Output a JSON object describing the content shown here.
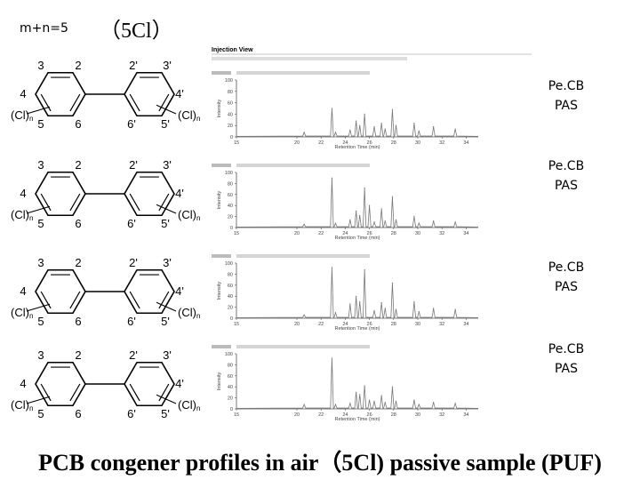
{
  "slide": {
    "tag": "m+n=5",
    "heading": "（5Cl）",
    "caption": "PCB congener profiles in air（5Cl) passive sample (PUF)"
  },
  "molecule": {
    "pos": [
      "3",
      "2",
      "2'",
      "3'",
      "4",
      "4'",
      "5",
      "6",
      "6'",
      "5'"
    ],
    "cl_left": "(Cl)",
    "cl_right": "(Cl)",
    "sub": "n"
  },
  "panel_header": "Injection View",
  "panels": [
    {
      "label_1": "Pe.CB",
      "label_2": "PAS"
    },
    {
      "label_1": "Pe.CB",
      "label_2": "PAS"
    },
    {
      "label_1": "Pe.CB",
      "label_2": "PAS"
    },
    {
      "label_1": "Pe.CB",
      "label_2": "PAS"
    }
  ],
  "chart_data": [
    {
      "type": "line",
      "xlabel": "Retention Time (min)",
      "ylabel": "Intensity",
      "xlim": [
        15,
        35
      ],
      "ylim": [
        0,
        100
      ],
      "x_ticks": [
        "15",
        "20",
        "22",
        "24",
        "26",
        "28",
        "30",
        "32",
        "34"
      ],
      "y_ticks": [
        "0",
        "20",
        "40",
        "60",
        "80",
        "100"
      ],
      "series": [
        {
          "peaks": [
            [
              20.6,
              8
            ],
            [
              22.9,
              50
            ],
            [
              23.2,
              8
            ],
            [
              24.4,
              12
            ],
            [
              24.9,
              28
            ],
            [
              25.2,
              20
            ],
            [
              25.6,
              40
            ],
            [
              26.4,
              18
            ],
            [
              27.0,
              24
            ],
            [
              27.3,
              14
            ],
            [
              27.9,
              48
            ],
            [
              28.2,
              20
            ],
            [
              29.7,
              24
            ],
            [
              30.1,
              10
            ],
            [
              31.3,
              18
            ],
            [
              33.1,
              14
            ]
          ]
        }
      ]
    },
    {
      "type": "line",
      "xlabel": "Retention Time (min)",
      "ylabel": "Intensity",
      "xlim": [
        15,
        35
      ],
      "ylim": [
        0,
        100
      ],
      "x_ticks": [
        "15",
        "20",
        "22",
        "24",
        "26",
        "28",
        "30",
        "32",
        "34"
      ],
      "y_ticks": [
        "0",
        "20",
        "40",
        "60",
        "80",
        "100"
      ],
      "series": [
        {
          "peaks": [
            [
              20.6,
              6
            ],
            [
              22.9,
              90
            ],
            [
              23.2,
              8
            ],
            [
              24.4,
              14
            ],
            [
              24.9,
              30
            ],
            [
              25.2,
              22
            ],
            [
              25.6,
              72
            ],
            [
              26.0,
              40
            ],
            [
              26.4,
              10
            ],
            [
              27.0,
              34
            ],
            [
              27.3,
              12
            ],
            [
              27.9,
              56
            ],
            [
              28.2,
              14
            ],
            [
              29.7,
              20
            ],
            [
              30.1,
              8
            ],
            [
              31.3,
              12
            ],
            [
              33.1,
              10
            ]
          ]
        }
      ]
    },
    {
      "type": "line",
      "xlabel": "Retention Time (min)",
      "ylabel": "Intensity",
      "xlim": [
        15,
        35
      ],
      "ylim": [
        0,
        100
      ],
      "x_ticks": [
        "15",
        "20",
        "22",
        "24",
        "26",
        "28",
        "30",
        "32",
        "34"
      ],
      "y_ticks": [
        "0",
        "20",
        "40",
        "60",
        "80",
        "100"
      ],
      "series": [
        {
          "peaks": [
            [
              20.6,
              6
            ],
            [
              22.9,
              92
            ],
            [
              23.2,
              10
            ],
            [
              24.4,
              26
            ],
            [
              24.9,
              40
            ],
            [
              25.2,
              30
            ],
            [
              25.6,
              88
            ],
            [
              26.4,
              14
            ],
            [
              27.0,
              28
            ],
            [
              27.3,
              18
            ],
            [
              27.9,
              64
            ],
            [
              28.2,
              16
            ],
            [
              29.7,
              30
            ],
            [
              30.1,
              12
            ],
            [
              31.3,
              18
            ],
            [
              33.1,
              16
            ]
          ]
        }
      ]
    },
    {
      "type": "line",
      "xlabel": "Retention Time (min)",
      "ylabel": "Intensity",
      "xlim": [
        15,
        35
      ],
      "ylim": [
        0,
        100
      ],
      "x_ticks": [
        "15",
        "20",
        "22",
        "24",
        "26",
        "28",
        "30",
        "32",
        "34"
      ],
      "y_ticks": [
        "0",
        "20",
        "40",
        "60",
        "80",
        "100"
      ],
      "series": [
        {
          "peaks": [
            [
              20.6,
              8
            ],
            [
              22.9,
              92
            ],
            [
              23.2,
              8
            ],
            [
              24.4,
              10
            ],
            [
              24.9,
              30
            ],
            [
              25.2,
              26
            ],
            [
              25.6,
              42
            ],
            [
              26.0,
              16
            ],
            [
              26.4,
              14
            ],
            [
              27.0,
              24
            ],
            [
              27.3,
              12
            ],
            [
              27.9,
              40
            ],
            [
              28.2,
              14
            ],
            [
              29.7,
              16
            ],
            [
              30.1,
              8
            ],
            [
              31.3,
              12
            ],
            [
              33.1,
              10
            ]
          ]
        }
      ]
    }
  ]
}
